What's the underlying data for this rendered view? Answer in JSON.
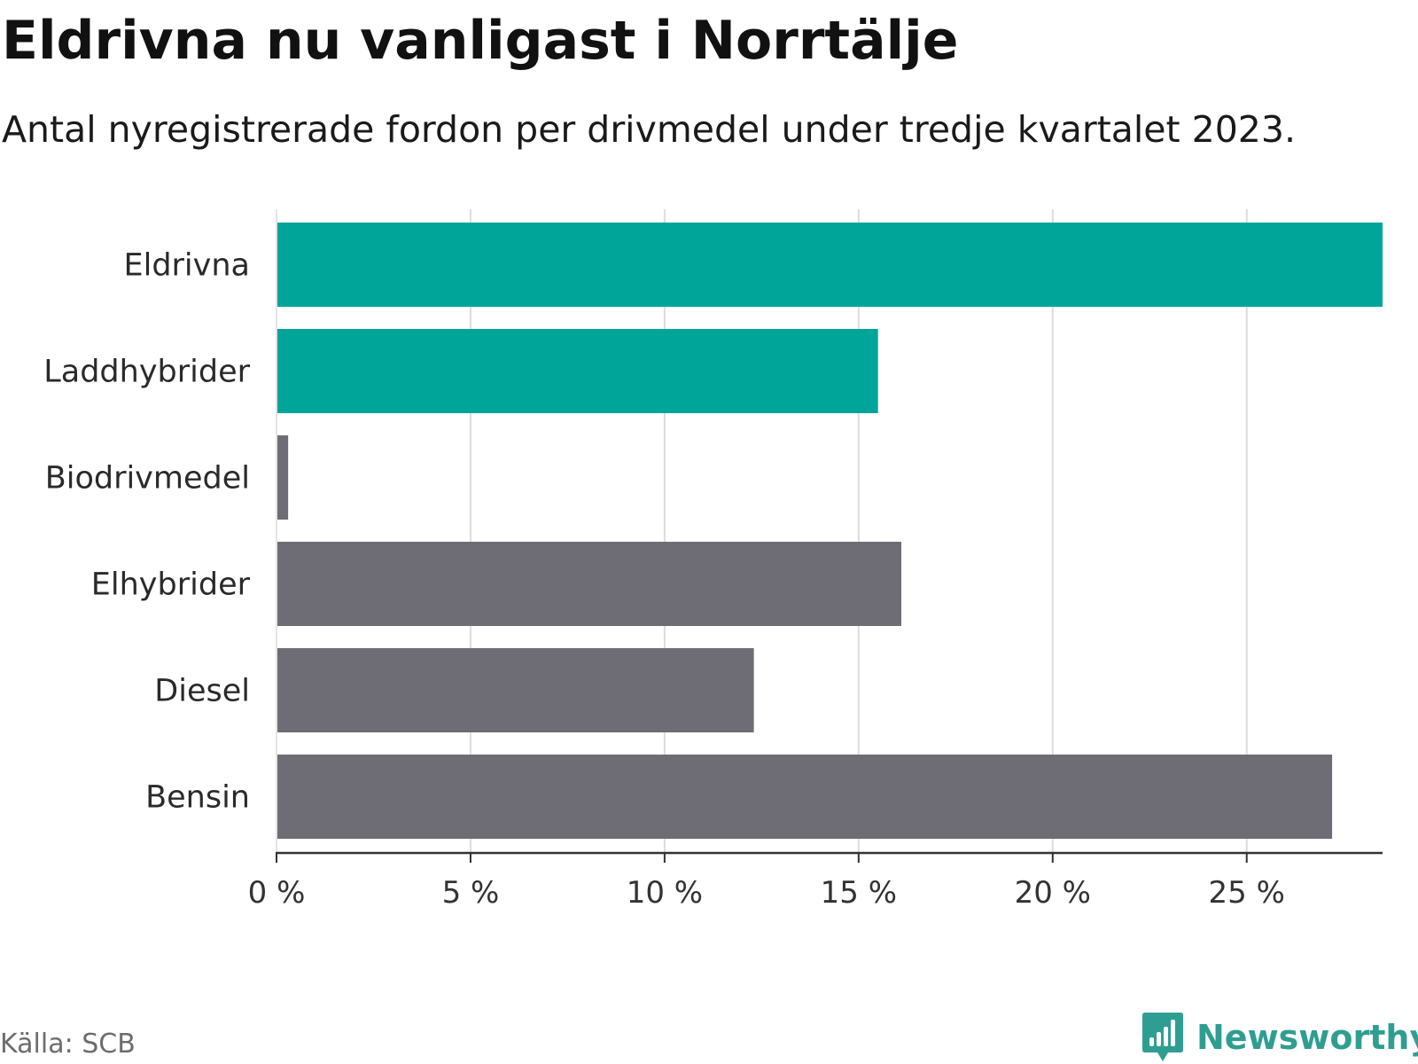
{
  "header": {
    "title": "Eldrivna nu vanligast i Norrtälje",
    "subtitle": "Antal nyregistrerade fordon per drivmedel under tredje kvartalet 2023."
  },
  "footer": {
    "source": "Källa: SCB",
    "brand": "Newsworthy",
    "brand_icon": "bar-chart-logo-icon"
  },
  "colors": {
    "highlight": "#00a59a",
    "default": "#6e6d75",
    "grid": "#dcdcdc",
    "axis": "#333333",
    "brand": "#2f9e92"
  },
  "chart_data": {
    "type": "bar",
    "orientation": "horizontal",
    "title": "Eldrivna nu vanligast i Norrtälje",
    "subtitle": "Antal nyregistrerade fordon per drivmedel under tredje kvartalet 2023.",
    "categories": [
      "Eldrivna",
      "Laddhybrider",
      "Biodrivmedel",
      "Elhybrider",
      "Diesel",
      "Bensin"
    ],
    "values": [
      28.5,
      15.5,
      0.3,
      16.1,
      12.3,
      27.2
    ],
    "highlighted": [
      true,
      true,
      false,
      false,
      false,
      false
    ],
    "unit": "%",
    "xlim": [
      0,
      28.5
    ],
    "xticks": [
      0,
      5,
      10,
      15,
      20,
      25
    ],
    "xtick_labels": [
      "0 %",
      "5 %",
      "10 %",
      "15 %",
      "20 %",
      "25 %"
    ],
    "xlabel": "",
    "ylabel": "",
    "grid": true
  }
}
